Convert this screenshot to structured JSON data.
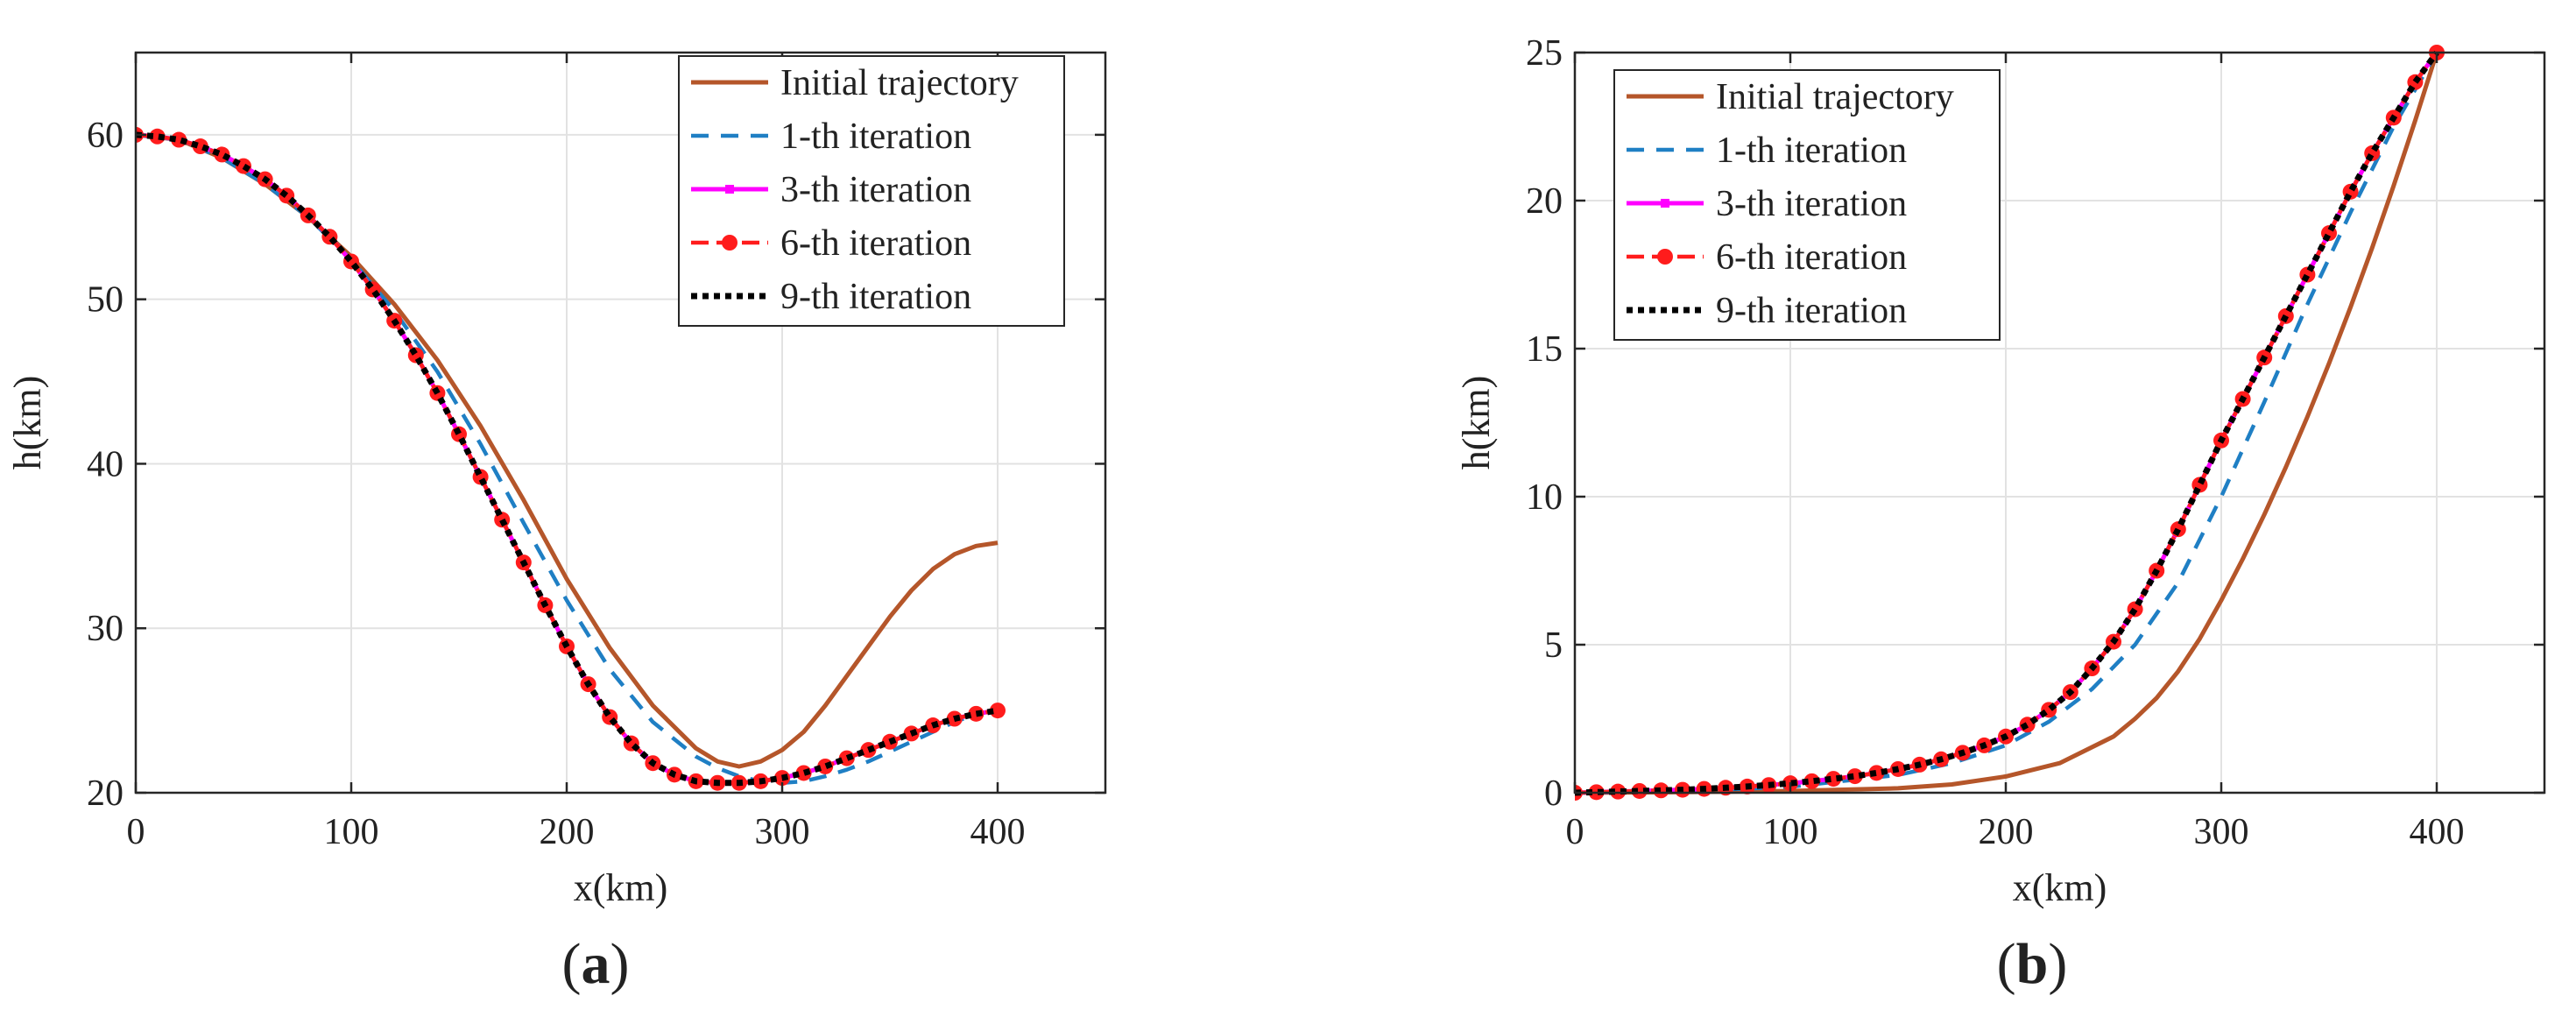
{
  "figure": {
    "panels": [
      {
        "caption_open": "(",
        "caption_letter": "a",
        "caption_close": ")"
      },
      {
        "caption_open": "(",
        "caption_letter": "b",
        "caption_close": ")"
      }
    ]
  },
  "styles": {
    "initial": {
      "color": "#b5562a"
    },
    "iter1": {
      "color": "#1f7fc4"
    },
    "iter3": {
      "color": "#ff00ff"
    },
    "iter6": {
      "color": "#ff1c1c"
    },
    "iter9": {
      "color": "#000000"
    }
  },
  "chart_data": [
    {
      "type": "line",
      "panel": "a",
      "title": "",
      "xlabel": "x(km)",
      "ylabel": "h(km)",
      "xlim": [
        0,
        450
      ],
      "ylim": [
        20,
        65
      ],
      "xticks": [
        0,
        100,
        200,
        300,
        400
      ],
      "yticks": [
        20,
        30,
        40,
        50,
        60
      ],
      "grid": true,
      "legend_position": "top-right",
      "series": [
        {
          "name": "Initial trajectory",
          "style": "initial",
          "x": [
            0,
            20,
            40,
            60,
            80,
            100,
            120,
            140,
            160,
            180,
            200,
            220,
            240,
            260,
            270,
            280,
            290,
            300,
            310,
            320,
            330,
            340,
            350,
            360,
            370,
            380,
            390,
            400
          ],
          "y": [
            60,
            59.7,
            58.6,
            57,
            55,
            52.6,
            49.7,
            46.3,
            42.3,
            37.8,
            33,
            28.8,
            25.3,
            22.7,
            21.9,
            21.6,
            21.9,
            22.6,
            23.7,
            25.3,
            27.1,
            28.9,
            30.7,
            32.3,
            33.6,
            34.5,
            35,
            35.2
          ]
        },
        {
          "name": "1-th iteration",
          "style": "iter1",
          "x": [
            0,
            20,
            40,
            60,
            80,
            100,
            120,
            140,
            160,
            180,
            200,
            220,
            240,
            260,
            270,
            280,
            290,
            300,
            310,
            320,
            330,
            340,
            350,
            360,
            370,
            380,
            390,
            400
          ],
          "y": [
            60,
            59.7,
            58.6,
            57,
            55,
            52.4,
            49.3,
            45.6,
            41.2,
            36.4,
            31.7,
            27.5,
            24.3,
            22.2,
            21.5,
            21,
            20.7,
            20.6,
            20.7,
            21,
            21.4,
            21.9,
            22.5,
            23.1,
            23.7,
            24.3,
            24.8,
            25
          ]
        },
        {
          "name": "3-th iteration",
          "style": "iter3",
          "x": [
            0,
            10,
            20,
            30,
            40,
            50,
            60,
            70,
            80,
            90,
            100,
            110,
            120,
            130,
            140,
            150,
            160,
            170,
            180,
            190,
            200,
            210,
            220,
            230,
            240,
            250,
            260,
            270,
            280,
            290,
            300,
            310,
            320,
            330,
            340,
            350,
            360,
            370,
            380,
            390,
            400
          ],
          "y": [
            60,
            59.9,
            59.7,
            59.3,
            58.8,
            58.1,
            57.3,
            56.3,
            55.1,
            53.8,
            52.3,
            50.6,
            48.7,
            46.6,
            44.3,
            41.8,
            39.2,
            36.6,
            34,
            31.4,
            28.9,
            26.6,
            24.6,
            23,
            21.8,
            21.1,
            20.7,
            20.6,
            20.6,
            20.7,
            20.9,
            21.2,
            21.6,
            22.1,
            22.6,
            23.1,
            23.6,
            24.1,
            24.5,
            24.8,
            25
          ]
        },
        {
          "name": "6-th iteration",
          "style": "iter6",
          "x": [
            0,
            10,
            20,
            30,
            40,
            50,
            60,
            70,
            80,
            90,
            100,
            110,
            120,
            130,
            140,
            150,
            160,
            170,
            180,
            190,
            200,
            210,
            220,
            230,
            240,
            250,
            260,
            270,
            280,
            290,
            300,
            310,
            320,
            330,
            340,
            350,
            360,
            370,
            380,
            390,
            400
          ],
          "y": [
            60,
            59.9,
            59.7,
            59.3,
            58.8,
            58.1,
            57.3,
            56.3,
            55.1,
            53.8,
            52.3,
            50.6,
            48.7,
            46.6,
            44.3,
            41.8,
            39.2,
            36.6,
            34,
            31.4,
            28.9,
            26.6,
            24.6,
            23,
            21.8,
            21.1,
            20.7,
            20.6,
            20.6,
            20.7,
            20.9,
            21.2,
            21.6,
            22.1,
            22.6,
            23.1,
            23.6,
            24.1,
            24.5,
            24.8,
            25
          ]
        },
        {
          "name": "9-th iteration",
          "style": "iter9",
          "x": [
            0,
            10,
            20,
            30,
            40,
            50,
            60,
            70,
            80,
            90,
            100,
            110,
            120,
            130,
            140,
            150,
            160,
            170,
            180,
            190,
            200,
            210,
            220,
            230,
            240,
            250,
            260,
            270,
            280,
            290,
            300,
            310,
            320,
            330,
            340,
            350,
            360,
            370,
            380,
            390,
            400
          ],
          "y": [
            60,
            59.9,
            59.7,
            59.3,
            58.8,
            58.1,
            57.3,
            56.3,
            55.1,
            53.8,
            52.3,
            50.6,
            48.7,
            46.6,
            44.3,
            41.8,
            39.2,
            36.6,
            34,
            31.4,
            28.9,
            26.6,
            24.6,
            23,
            21.8,
            21.1,
            20.7,
            20.6,
            20.6,
            20.7,
            20.9,
            21.2,
            21.6,
            22.1,
            22.6,
            23.1,
            23.6,
            24.1,
            24.5,
            24.8,
            25
          ]
        }
      ]
    },
    {
      "type": "line",
      "panel": "b",
      "title": "",
      "xlabel": "x(km)",
      "ylabel": "h(km)",
      "xlim": [
        0,
        450
      ],
      "ylim": [
        0,
        25
      ],
      "xticks": [
        0,
        100,
        200,
        300,
        400
      ],
      "yticks": [
        0,
        5,
        10,
        15,
        20,
        25
      ],
      "grid": true,
      "legend_position": "top-left",
      "series": [
        {
          "name": "Initial trajectory",
          "style": "initial",
          "x": [
            0,
            50,
            100,
            150,
            175,
            200,
            225,
            250,
            260,
            270,
            280,
            290,
            300,
            310,
            320,
            330,
            340,
            350,
            360,
            370,
            380,
            390,
            400
          ],
          "y": [
            0,
            0.02,
            0.06,
            0.15,
            0.28,
            0.55,
            1,
            1.9,
            2.5,
            3.2,
            4.1,
            5.2,
            6.5,
            7.9,
            9.4,
            11,
            12.7,
            14.5,
            16.4,
            18.4,
            20.5,
            22.7,
            25
          ]
        },
        {
          "name": "1-th iteration",
          "style": "iter1",
          "x": [
            0,
            50,
            100,
            150,
            175,
            200,
            220,
            240,
            260,
            280,
            300,
            320,
            340,
            360,
            380,
            400
          ],
          "y": [
            0,
            0.05,
            0.2,
            0.6,
            1,
            1.6,
            2.4,
            3.5,
            5,
            7.1,
            10,
            13.2,
            16.5,
            19.6,
            22.5,
            25
          ]
        },
        {
          "name": "3-th iteration",
          "style": "iter3",
          "x": [
            0,
            10,
            20,
            30,
            40,
            50,
            60,
            70,
            80,
            90,
            100,
            110,
            120,
            130,
            140,
            150,
            160,
            170,
            180,
            190,
            200,
            210,
            220,
            230,
            240,
            250,
            260,
            270,
            280,
            290,
            300,
            310,
            320,
            330,
            340,
            350,
            360,
            370,
            380,
            390,
            400
          ],
          "y": [
            0,
            0.02,
            0.04,
            0.06,
            0.08,
            0.1,
            0.13,
            0.17,
            0.21,
            0.26,
            0.32,
            0.39,
            0.47,
            0.56,
            0.67,
            0.8,
            0.95,
            1.13,
            1.35,
            1.6,
            1.9,
            2.3,
            2.8,
            3.4,
            4.2,
            5.1,
            6.2,
            7.5,
            8.9,
            10.4,
            11.9,
            13.3,
            14.7,
            16.1,
            17.5,
            18.9,
            20.3,
            21.6,
            22.8,
            24,
            25
          ]
        },
        {
          "name": "6-th iteration",
          "style": "iter6",
          "x": [
            0,
            10,
            20,
            30,
            40,
            50,
            60,
            70,
            80,
            90,
            100,
            110,
            120,
            130,
            140,
            150,
            160,
            170,
            180,
            190,
            200,
            210,
            220,
            230,
            240,
            250,
            260,
            270,
            280,
            290,
            300,
            310,
            320,
            330,
            340,
            350,
            360,
            370,
            380,
            390,
            400
          ],
          "y": [
            0,
            0.02,
            0.04,
            0.06,
            0.08,
            0.1,
            0.13,
            0.17,
            0.21,
            0.26,
            0.32,
            0.39,
            0.47,
            0.56,
            0.67,
            0.8,
            0.95,
            1.13,
            1.35,
            1.6,
            1.9,
            2.3,
            2.8,
            3.4,
            4.2,
            5.1,
            6.2,
            7.5,
            8.9,
            10.4,
            11.9,
            13.3,
            14.7,
            16.1,
            17.5,
            18.9,
            20.3,
            21.6,
            22.8,
            24,
            25
          ]
        },
        {
          "name": "9-th iteration",
          "style": "iter9",
          "x": [
            0,
            10,
            20,
            30,
            40,
            50,
            60,
            70,
            80,
            90,
            100,
            110,
            120,
            130,
            140,
            150,
            160,
            170,
            180,
            190,
            200,
            210,
            220,
            230,
            240,
            250,
            260,
            270,
            280,
            290,
            300,
            310,
            320,
            330,
            340,
            350,
            360,
            370,
            380,
            390,
            400
          ],
          "y": [
            0,
            0.02,
            0.04,
            0.06,
            0.08,
            0.1,
            0.13,
            0.17,
            0.21,
            0.26,
            0.32,
            0.39,
            0.47,
            0.56,
            0.67,
            0.8,
            0.95,
            1.13,
            1.35,
            1.6,
            1.9,
            2.3,
            2.8,
            3.4,
            4.2,
            5.1,
            6.2,
            7.5,
            8.9,
            10.4,
            11.9,
            13.3,
            14.7,
            16.1,
            17.5,
            18.9,
            20.3,
            21.6,
            22.8,
            24,
            25
          ]
        }
      ]
    }
  ]
}
